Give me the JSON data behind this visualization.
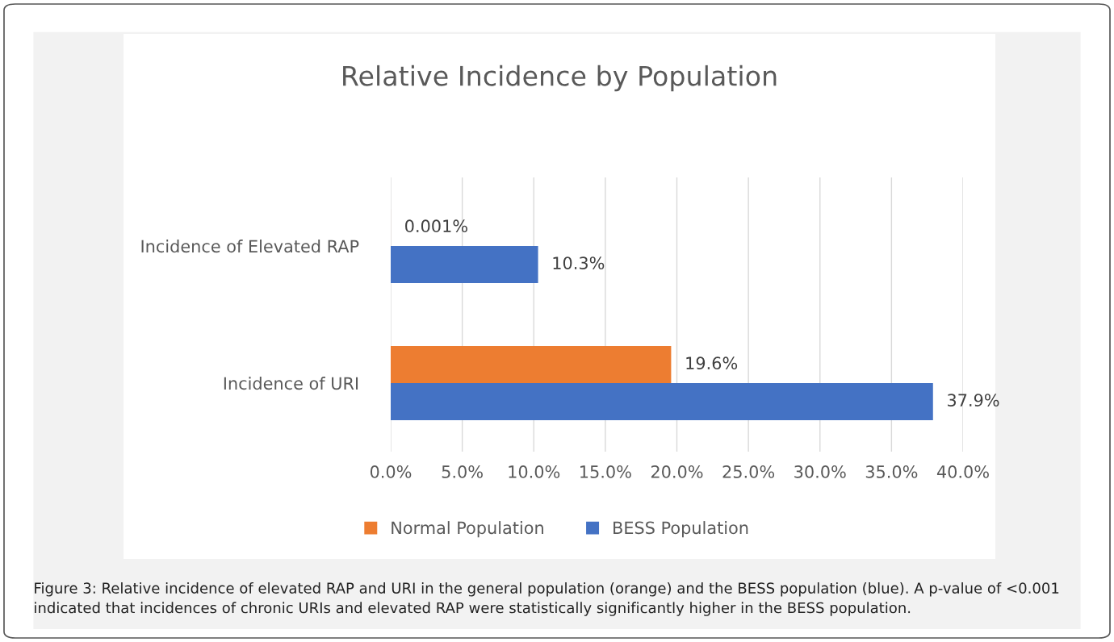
{
  "chart_data": {
    "type": "bar",
    "orientation": "horizontal",
    "title": "Relative Incidence by Population",
    "categories": [
      "Incidence of Elevated RAP",
      "Incidence of URI"
    ],
    "series": [
      {
        "name": "Normal Population",
        "color": "#ed7d31",
        "values": [
          0.001,
          19.6
        ],
        "value_labels": [
          "0.001%",
          "19.6%"
        ]
      },
      {
        "name": "BESS Population",
        "color": "#4472c4",
        "values": [
          10.3,
          37.9
        ],
        "value_labels": [
          "10.3%",
          "37.9%"
        ]
      }
    ],
    "xlim": [
      0,
      40
    ],
    "xticks": [
      {
        "value": 0,
        "label": "0.0%"
      },
      {
        "value": 5,
        "label": "5.0%"
      },
      {
        "value": 10,
        "label": "10.0%"
      },
      {
        "value": 15,
        "label": "15.0%"
      },
      {
        "value": 20,
        "label": "20.0%"
      },
      {
        "value": 25,
        "label": "25.0%"
      },
      {
        "value": 30,
        "label": "30.0%"
      },
      {
        "value": 35,
        "label": "35.0%"
      },
      {
        "value": 40,
        "label": "40.0%"
      }
    ],
    "grid": "x",
    "legend": "bottom",
    "annotations": [
      "Figure 3: Relative incidence of elevated RAP and URI in the general population (orange) and the BESS population (blue). A p-value of <0.001 indicated that incidences of chronic URIs and elevated RAP were statistically significantly higher in the BESS population."
    ]
  }
}
